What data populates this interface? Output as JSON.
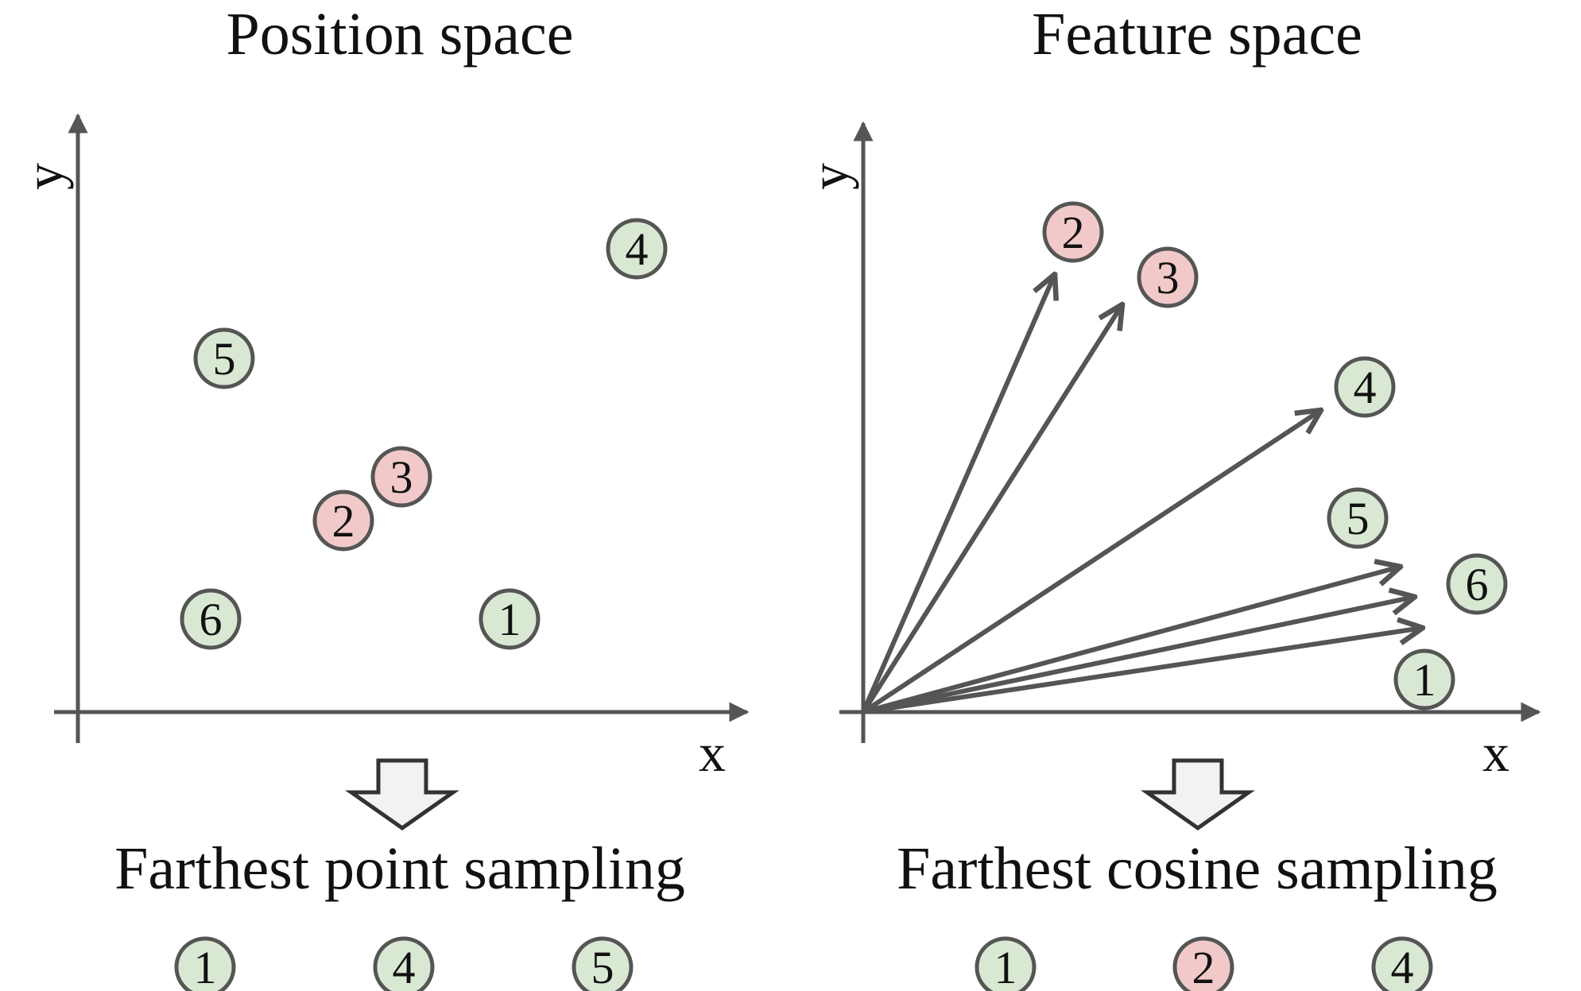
{
  "colors": {
    "axis": "#555555",
    "node_green_fill": "#d9e8d3",
    "node_red_fill": "#f2c9c9",
    "node_stroke": "#555555",
    "hollow_arrow_fill": "#f2f2f2"
  },
  "position_panel": {
    "title": "Position space",
    "x_label": "x",
    "y_label": "y",
    "points": [
      {
        "label": "1",
        "color": "green"
      },
      {
        "label": "2",
        "color": "red"
      },
      {
        "label": "3",
        "color": "red"
      },
      {
        "label": "4",
        "color": "green"
      },
      {
        "label": "5",
        "color": "green"
      },
      {
        "label": "6",
        "color": "green"
      }
    ],
    "caption": "Farthest point sampling",
    "selected": [
      {
        "label": "1",
        "color": "green"
      },
      {
        "label": "4",
        "color": "green"
      },
      {
        "label": "5",
        "color": "green"
      }
    ]
  },
  "feature_panel": {
    "title": "Feature space",
    "x_label": "x",
    "y_label": "y",
    "points": [
      {
        "label": "1",
        "color": "green"
      },
      {
        "label": "2",
        "color": "red"
      },
      {
        "label": "3",
        "color": "red"
      },
      {
        "label": "4",
        "color": "green"
      },
      {
        "label": "5",
        "color": "green"
      },
      {
        "label": "6",
        "color": "green"
      }
    ],
    "caption": "Farthest cosine sampling",
    "selected": [
      {
        "label": "1",
        "color": "green"
      },
      {
        "label": "2",
        "color": "red"
      },
      {
        "label": "4",
        "color": "green"
      }
    ]
  }
}
